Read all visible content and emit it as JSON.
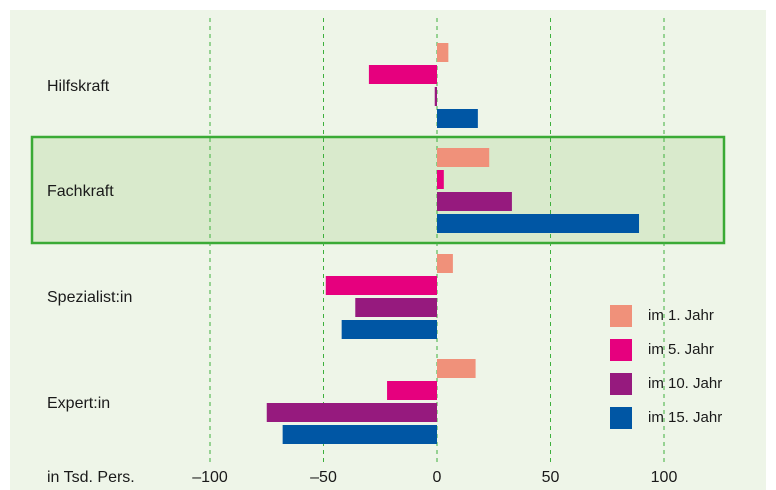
{
  "chart_data": {
    "type": "bar",
    "orientation": "horizontal",
    "categories": [
      "Hilfskraft",
      "Fachkraft",
      "Spezialist:in",
      "Expert:in"
    ],
    "highlighted_category": "Fachkraft",
    "series": [
      {
        "name": "im 1. Jahr",
        "color": "#f0917a",
        "values": [
          5,
          23,
          7,
          17
        ]
      },
      {
        "name": "im 5. Jahr",
        "color": "#e6007e",
        "values": [
          -30,
          3,
          -49,
          -22
        ]
      },
      {
        "name": "im 10. Jahr",
        "color": "#961a7e",
        "values": [
          -1,
          33,
          -36,
          -75
        ]
      },
      {
        "name": "im 15. Jahr",
        "color": "#0056a4",
        "values": [
          18,
          89,
          -42,
          -68
        ]
      }
    ],
    "xlim": [
      -120,
      130
    ],
    "xticks": [
      -100,
      -50,
      0,
      50,
      100
    ],
    "xtick_labels": [
      "–100",
      "–50",
      "0",
      "50",
      "100"
    ],
    "xlabel": "in Tsd. Pers.",
    "grid": "vertical dashed",
    "legend_position": "right",
    "colors": {
      "background": "#eef5e8",
      "grid": "#3db03d",
      "highlight_fill": "#d9eacc",
      "highlight_border": "#3aaa35"
    }
  }
}
